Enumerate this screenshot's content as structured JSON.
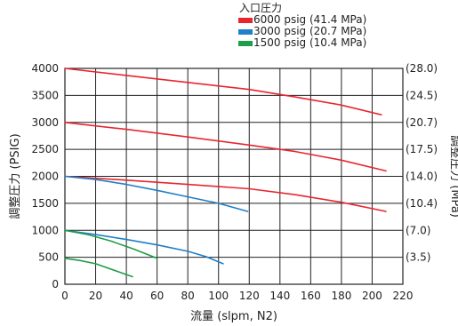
{
  "chart_data": {
    "type": "line",
    "xlabel": "流量 (slpm, N2)",
    "ylabel": "調整圧力 (PSIG)",
    "y2label": "調整圧力 (MPa)",
    "xlim": [
      0,
      220
    ],
    "ylim": [
      0,
      4000
    ],
    "x_ticks": [
      0,
      20,
      40,
      60,
      80,
      100,
      120,
      140,
      160,
      180,
      200,
      220
    ],
    "y_ticks": [
      0,
      500,
      1000,
      1500,
      2000,
      2500,
      3000,
      3500,
      4000
    ],
    "y2_ticks": [
      {
        "at": 500,
        "label": "(3.5)"
      },
      {
        "at": 1000,
        "label": "(7.0)"
      },
      {
        "at": 1500,
        "label": "(10.4)"
      },
      {
        "at": 2000,
        "label": "(14.0)"
      },
      {
        "at": 2500,
        "label": "(17.5)"
      },
      {
        "at": 3000,
        "label": "(20.7)"
      },
      {
        "at": 3500,
        "label": "(24.5)"
      },
      {
        "at": 4000,
        "label": "(28.0)"
      }
    ],
    "grid": true,
    "legend_title": "入口圧力",
    "legend_position": "top-right",
    "series": [
      {
        "name": "6000 psig (41.4 MPa)",
        "color": "#e8262f",
        "curves": [
          [
            [
              0,
              4000
            ],
            [
              40,
              3870
            ],
            [
              80,
              3740
            ],
            [
              120,
              3610
            ],
            [
              150,
              3470
            ],
            [
              180,
              3320
            ],
            [
              206,
              3140
            ]
          ],
          [
            [
              0,
              3000
            ],
            [
              40,
              2870
            ],
            [
              80,
              2730
            ],
            [
              120,
              2580
            ],
            [
              150,
              2460
            ],
            [
              180,
              2300
            ],
            [
              209,
              2100
            ]
          ],
          [
            [
              0,
              2000
            ],
            [
              40,
              1930
            ],
            [
              80,
              1850
            ],
            [
              120,
              1770
            ],
            [
              150,
              1660
            ],
            [
              180,
              1520
            ],
            [
              209,
              1350
            ]
          ]
        ]
      },
      {
        "name": "3000 psig (20.7 MPa)",
        "color": "#1f7fc8",
        "curves": [
          [
            [
              0,
              2000
            ],
            [
              20,
              1940
            ],
            [
              40,
              1850
            ],
            [
              60,
              1740
            ],
            [
              80,
              1620
            ],
            [
              100,
              1500
            ],
            [
              119,
              1350
            ]
          ],
          [
            [
              0,
              1000
            ],
            [
              20,
              920
            ],
            [
              40,
              830
            ],
            [
              60,
              730
            ],
            [
              80,
              610
            ],
            [
              92,
              510
            ],
            [
              103,
              380
            ]
          ]
        ]
      },
      {
        "name": "1500 psig (10.4 MPa)",
        "color": "#1e9e49",
        "curves": [
          [
            [
              0,
              1000
            ],
            [
              15,
              920
            ],
            [
              30,
              800
            ],
            [
              45,
              650
            ],
            [
              60,
              480
            ]
          ],
          [
            [
              0,
              480
            ],
            [
              10,
              440
            ],
            [
              20,
              380
            ],
            [
              30,
              280
            ],
            [
              38,
              200
            ],
            [
              44,
              140
            ]
          ]
        ]
      }
    ]
  }
}
